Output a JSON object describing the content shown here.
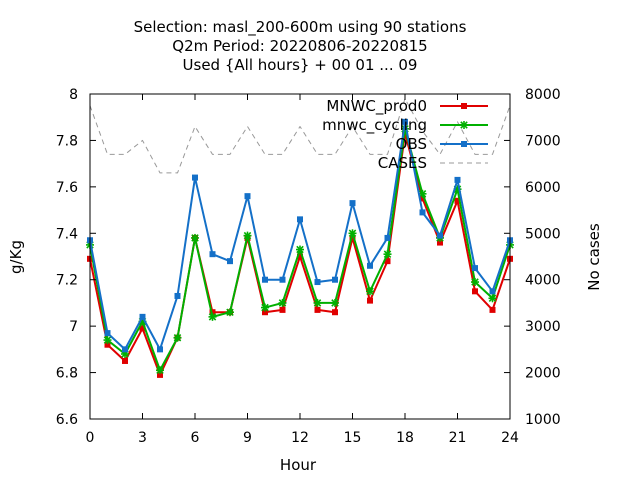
{
  "chart_data": {
    "type": "line",
    "title_lines": [
      "Selection: masl_200-600m using    90 stations",
      "Q2m   Period: 20220806-20220815",
      "Used {All hours} + 00 01 ... 09"
    ],
    "xlabel": "Hour",
    "ylabel": "g/Kg",
    "y2label": "No cases",
    "xlim": [
      0,
      24
    ],
    "ylim": [
      6.6,
      8.0
    ],
    "y2lim": [
      1000,
      8000
    ],
    "xticks": [
      0,
      3,
      6,
      9,
      12,
      15,
      18,
      21,
      24
    ],
    "yticks": [
      6.6,
      6.8,
      7.0,
      7.2,
      7.4,
      7.6,
      7.8,
      8.0
    ],
    "ytick_labels": [
      "6.6",
      "6.8",
      "7",
      "7.2",
      "7.4",
      "7.6",
      "7.8",
      "8"
    ],
    "y2ticks": [
      1000,
      2000,
      3000,
      4000,
      5000,
      6000,
      7000,
      8000
    ],
    "legend_position": "top-right",
    "x": [
      0,
      1,
      2,
      3,
      4,
      5,
      6,
      7,
      8,
      9,
      10,
      11,
      12,
      13,
      14,
      15,
      16,
      17,
      18,
      19,
      20,
      21,
      22,
      23,
      24
    ],
    "series": [
      {
        "name": "MNWC_prod0",
        "color": "#e00000",
        "marker": "square",
        "axis": "y",
        "values": [
          7.29,
          6.92,
          6.85,
          6.99,
          6.79,
          6.95,
          7.38,
          7.06,
          7.06,
          7.38,
          7.06,
          7.07,
          7.3,
          7.07,
          7.06,
          7.38,
          7.11,
          7.28,
          7.83,
          7.55,
          7.36,
          7.54,
          7.15,
          7.07,
          7.29
        ]
      },
      {
        "name": "mnwc_cycling",
        "color": "#00b000",
        "marker": "star",
        "axis": "y",
        "values": [
          7.35,
          6.94,
          6.88,
          7.02,
          6.81,
          6.95,
          7.38,
          7.04,
          7.06,
          7.39,
          7.08,
          7.1,
          7.33,
          7.1,
          7.1,
          7.4,
          7.15,
          7.31,
          7.85,
          7.57,
          7.38,
          7.59,
          7.19,
          7.12,
          7.35
        ]
      },
      {
        "name": "OBS",
        "color": "#1470c8",
        "marker": "square",
        "axis": "y",
        "values": [
          7.37,
          6.97,
          6.9,
          7.04,
          6.9,
          7.13,
          7.64,
          7.31,
          7.28,
          7.56,
          7.2,
          7.2,
          7.46,
          7.19,
          7.2,
          7.53,
          7.26,
          7.38,
          7.88,
          7.49,
          7.39,
          7.63,
          7.25,
          7.15,
          7.37
        ]
      },
      {
        "name": "CASES",
        "color": "#999999",
        "marker": "none",
        "dashed": true,
        "axis": "y2",
        "values": [
          7750,
          6700,
          6700,
          7000,
          6300,
          6300,
          7300,
          6700,
          6700,
          7300,
          6700,
          6700,
          7300,
          6700,
          6700,
          7300,
          6700,
          6700,
          7900,
          7200,
          6700,
          7400,
          6700,
          6700,
          7750
        ]
      }
    ]
  }
}
